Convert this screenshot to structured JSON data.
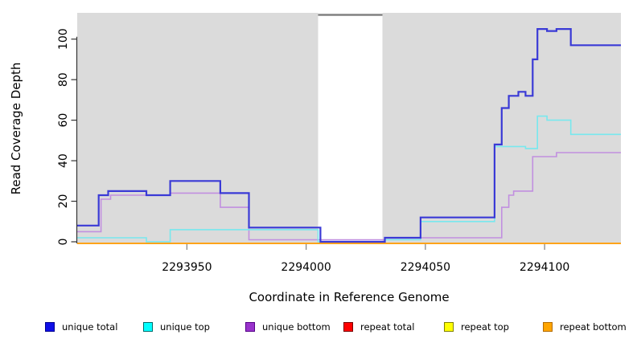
{
  "chart_data": {
    "type": "line",
    "subtype": "step",
    "title": "",
    "xlabel": "Coordinate in Reference Genome",
    "ylabel": "Read Coverage Depth",
    "xlim": [
      2293904,
      2294132
    ],
    "ylim": [
      0,
      113
    ],
    "x_ticks": [
      2293950,
      2294000,
      2294050,
      2294100
    ],
    "y_ticks": [
      0,
      20,
      40,
      60,
      80,
      100
    ],
    "grid": false,
    "plot_background": "#DBDBDB",
    "masked_region": {
      "from": 2294005,
      "to": 2294032,
      "color": "#FFFFFF",
      "top_marker_color": "#808080"
    },
    "axis_colors": {
      "y_axis": "#333333",
      "y_tick": "#333333",
      "x_tick": "#888888"
    },
    "series": [
      {
        "name": "repeat total",
        "color": "#CC0000",
        "width": 1.5,
        "points": [
          [
            2293904,
            0
          ]
        ]
      },
      {
        "name": "repeat top",
        "color": "#FFFF00",
        "width": 1.5,
        "points": [
          [
            2293904,
            0
          ]
        ]
      },
      {
        "name": "repeat bottom",
        "color": "#FFA319",
        "width": 2,
        "points": [
          [
            2293904,
            0
          ]
        ]
      },
      {
        "name": "unique bottom",
        "color": "#C18FE0",
        "width": 1.6,
        "points": [
          [
            2293904,
            5
          ],
          [
            2293914,
            21
          ],
          [
            2293918,
            23
          ],
          [
            2293943,
            24
          ],
          [
            2293964,
            17
          ],
          [
            2293976,
            1
          ],
          [
            2294033,
            2
          ],
          [
            2294082,
            17
          ],
          [
            2294085,
            23
          ],
          [
            2294087,
            25
          ],
          [
            2294095,
            42
          ],
          [
            2294105,
            44
          ]
        ]
      },
      {
        "name": "unique top",
        "color": "#78E8EE",
        "width": 1.6,
        "points": [
          [
            2293904,
            2
          ],
          [
            2293933,
            0
          ],
          [
            2293943,
            6
          ],
          [
            2294005,
            0
          ],
          [
            2294033,
            1
          ],
          [
            2294048,
            10
          ],
          [
            2294079,
            47
          ],
          [
            2294092,
            46
          ],
          [
            2294097,
            62
          ],
          [
            2294101,
            60
          ],
          [
            2294111,
            53
          ]
        ]
      },
      {
        "name": "unique total",
        "color": "#3A3AD6",
        "width": 2.2,
        "points": [
          [
            2293904,
            8
          ],
          [
            2293913,
            23
          ],
          [
            2293917,
            25
          ],
          [
            2293933,
            23
          ],
          [
            2293943,
            30
          ],
          [
            2293964,
            24
          ],
          [
            2293976,
            7
          ],
          [
            2294006,
            0
          ],
          [
            2294033,
            2
          ],
          [
            2294048,
            12
          ],
          [
            2294079,
            48
          ],
          [
            2294082,
            66
          ],
          [
            2294085,
            72
          ],
          [
            2294089,
            74
          ],
          [
            2294092,
            72
          ],
          [
            2294095,
            90
          ],
          [
            2294097,
            105
          ],
          [
            2294101,
            104
          ],
          [
            2294105,
            105
          ],
          [
            2294111,
            97
          ]
        ]
      }
    ],
    "legend": {
      "position": "bottom",
      "entries": [
        {
          "label": "unique total",
          "fill": "#0F0FE8",
          "border": "#000090"
        },
        {
          "label": "unique top",
          "fill": "#00FFFF",
          "border": "#006B6B"
        },
        {
          "label": "unique bottom",
          "fill": "#9933CC",
          "border": "#550088"
        },
        {
          "label": "repeat total",
          "fill": "#FF0000",
          "border": "#770000"
        },
        {
          "label": "repeat top",
          "fill": "#FFFF00",
          "border": "#808000"
        },
        {
          "label": "repeat bottom",
          "fill": "#FFA500",
          "border": "#B36B00"
        }
      ]
    }
  }
}
